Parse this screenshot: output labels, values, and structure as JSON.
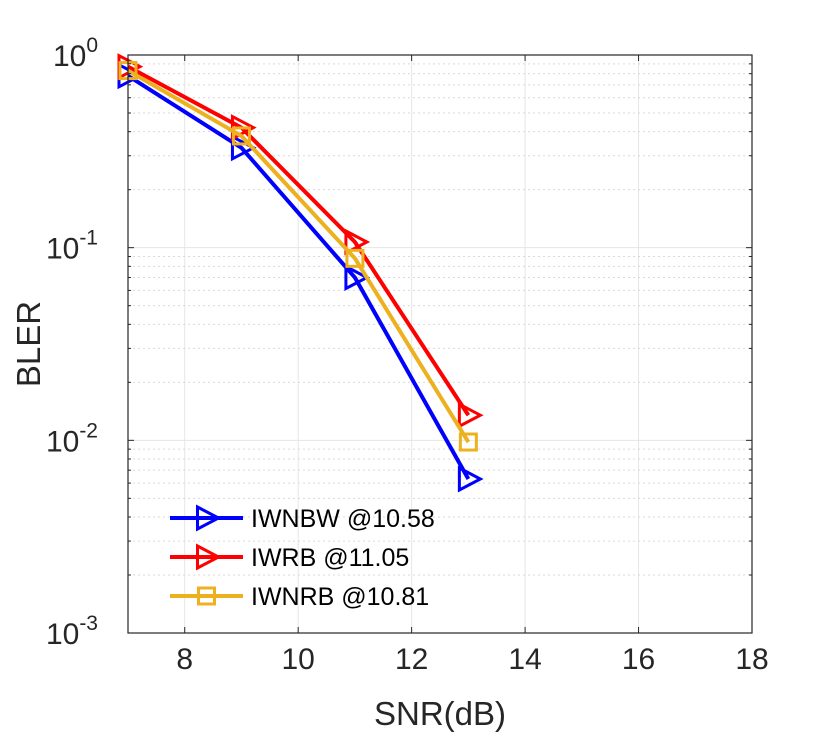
{
  "chart_data": {
    "type": "line",
    "title": "",
    "xlabel": "SNR(dB)",
    "ylabel": "BLER",
    "xlim": [
      7,
      18
    ],
    "ylim": [
      0.001,
      1
    ],
    "yscale": "log",
    "grid": true,
    "xticks": [
      8,
      10,
      12,
      14,
      16,
      18
    ],
    "xtick_labels": [
      "8",
      "10",
      "12",
      "14",
      "16",
      "18"
    ],
    "yticks": [
      {
        "value": 0.001,
        "base": "10",
        "exp": "-3"
      },
      {
        "value": 0.01,
        "base": "10",
        "exp": "-2"
      },
      {
        "value": 0.1,
        "base": "10",
        "exp": "-1"
      },
      {
        "value": 1,
        "base": "10",
        "exp": "0"
      }
    ],
    "legend_position": "bottom-left",
    "series": [
      {
        "name": "IWNBW @10.58",
        "color": "#0000ff",
        "marker": "triangle-right",
        "x": [
          7,
          9,
          11,
          13
        ],
        "y": [
          0.78,
          0.33,
          0.07,
          0.0063
        ]
      },
      {
        "name": "IWRB @11.05",
        "color": "#ff0000",
        "marker": "triangle-right",
        "x": [
          7,
          9,
          11,
          13
        ],
        "y": [
          0.87,
          0.42,
          0.107,
          0.0135
        ]
      },
      {
        "name": "IWNRB @10.81",
        "color": "#edb120",
        "marker": "square",
        "x": [
          7,
          9,
          11,
          13
        ],
        "y": [
          0.83,
          0.38,
          0.088,
          0.0098
        ]
      }
    ]
  }
}
